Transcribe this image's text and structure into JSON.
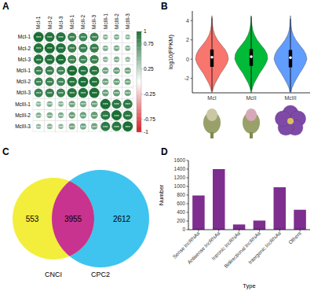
{
  "chart_data": [
    {
      "type": "correlation",
      "title": "A",
      "categories": [
        "McI-1",
        "McI-2",
        "McI-3",
        "McII-1",
        "McII-2",
        "McII-3",
        "McIII-1",
        "McIII-2",
        "McIII-3"
      ],
      "cells": [
        [
          1,
          0.96,
          0.95,
          0.86,
          0.84,
          0.85,
          0.52,
          0.55,
          0.5
        ],
        [
          0.96,
          1,
          0.97,
          0.87,
          0.86,
          0.88,
          0.56,
          0.58,
          0.54
        ],
        [
          0.95,
          0.97,
          1,
          0.85,
          0.84,
          0.86,
          0.53,
          0.56,
          0.51
        ],
        [
          0.86,
          0.87,
          0.85,
          1,
          0.96,
          0.95,
          0.64,
          0.66,
          0.62
        ],
        [
          0.84,
          0.86,
          0.84,
          0.96,
          1,
          0.97,
          0.63,
          0.65,
          0.61
        ],
        [
          0.85,
          0.88,
          0.86,
          0.95,
          0.97,
          1,
          0.66,
          0.68,
          0.63
        ],
        [
          0.52,
          0.56,
          0.53,
          0.64,
          0.63,
          0.66,
          1,
          0.93,
          0.92
        ],
        [
          0.55,
          0.58,
          0.56,
          0.66,
          0.65,
          0.68,
          0.93,
          1,
          0.94
        ],
        [
          0.5,
          0.54,
          0.51,
          0.62,
          0.61,
          0.63,
          0.92,
          0.94,
          1
        ]
      ],
      "cell_labels": [
        [
          "***",
          "***",
          "***",
          "***",
          "***",
          "***",
          "***",
          "***",
          "***"
        ],
        [
          "***",
          "***",
          "***",
          "***",
          "***",
          "***",
          "***",
          "***",
          "***"
        ],
        [
          "***",
          "***",
          "***",
          "***",
          "***",
          "***",
          "***",
          "***",
          "***"
        ],
        [
          "***",
          "***",
          "***",
          "***",
          "***",
          "***",
          "***",
          "***",
          "***"
        ],
        [
          "***",
          "***",
          "***",
          "***",
          "***",
          "***",
          "***",
          "***",
          "***"
        ],
        [
          "***",
          "***",
          "***",
          "***",
          "***",
          "***",
          "***",
          "***",
          "***"
        ],
        [
          "***",
          "***",
          "***",
          "***",
          "***",
          "***",
          "***",
          "***",
          "***"
        ],
        [
          "***",
          "***",
          "***",
          "***",
          "***",
          "***",
          "***",
          "***",
          "***"
        ],
        [
          "***",
          "***",
          "***",
          "***",
          "***",
          "***",
          "***",
          "***",
          "***"
        ]
      ],
      "colorbar_lim": [
        -1,
        1
      ],
      "colorbar_ticks": [
        1,
        0.75,
        0.25,
        -0.25,
        -0.75,
        -1
      ],
      "colorbar_colors": [
        "#d7191c",
        "#ffffff",
        "#1b6e35"
      ]
    },
    {
      "type": "violin",
      "title": "B",
      "ylabel": "log10(FPKM)",
      "categories": [
        "McI",
        "McII",
        "McIII"
      ],
      "ylim": [
        -3.5,
        5
      ],
      "yticks": [
        -2,
        0,
        2,
        4
      ],
      "density_y": [
        -3.5,
        -3,
        -2.5,
        -2,
        -1.5,
        -1,
        -0.5,
        0,
        0.5,
        1,
        1.5,
        2,
        2.5,
        3,
        3.5,
        4,
        4.5
      ],
      "series": [
        {
          "color": "#f8766d",
          "density": [
            0.02,
            0.08,
            0.2,
            0.36,
            0.52,
            0.72,
            0.9,
            1,
            0.95,
            0.8,
            0.56,
            0.34,
            0.18,
            0.09,
            0.04,
            0.02,
            0.01
          ],
          "q1": -0.8,
          "median": 0.2,
          "q3": 1.0,
          "whisker_low": -3.3,
          "whisker_high": 4.3
        },
        {
          "color": "#00ba38",
          "density": [
            0.02,
            0.07,
            0.18,
            0.34,
            0.5,
            0.7,
            0.88,
            1,
            0.97,
            0.82,
            0.58,
            0.36,
            0.2,
            0.1,
            0.05,
            0.02,
            0.01
          ],
          "q1": -0.7,
          "median": 0.25,
          "q3": 1.05,
          "whisker_low": -3.2,
          "whisker_high": 4.4
        },
        {
          "color": "#619cff",
          "density": [
            0.03,
            0.09,
            0.22,
            0.38,
            0.55,
            0.74,
            0.9,
            1,
            0.94,
            0.78,
            0.54,
            0.33,
            0.17,
            0.08,
            0.04,
            0.02,
            0.01
          ],
          "q1": -0.85,
          "median": 0.15,
          "q3": 0.95,
          "whisker_low": -3.4,
          "whisker_high": 4.2
        }
      ]
    },
    {
      "type": "venn",
      "title": "C",
      "sets": [
        "CNCI",
        "CPC2"
      ],
      "values": [
        553,
        3955,
        2612
      ],
      "colors": [
        "#f3ee3c",
        "#c8338f",
        "#3ec4ef"
      ]
    },
    {
      "type": "bar",
      "title": "D",
      "xlabel": "Type",
      "ylabel": "Number",
      "categories": [
        "Sense lncRNAs",
        "Antisense lncRNAs",
        "Intronic lncRNAs",
        "Bidirectional lncRNAs",
        "Intergenic lncRNAs",
        "Others"
      ],
      "values": [
        790,
        1400,
        120,
        210,
        980,
        460
      ],
      "color": "#7d2e8e",
      "ylim": [
        0,
        1600
      ],
      "yticks": [
        0,
        200,
        400,
        600,
        800,
        1000,
        1200,
        1400,
        1600
      ],
      "grid": false
    }
  ]
}
